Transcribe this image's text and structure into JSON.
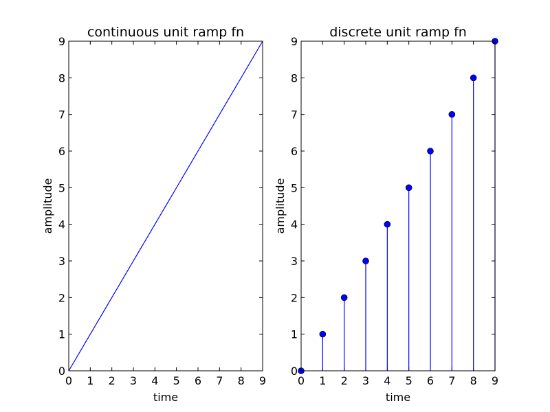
{
  "chart_data": [
    {
      "type": "line",
      "title": "continuous unit ramp fn",
      "xlabel": "time",
      "ylabel": "amplitude",
      "xlim": [
        0,
        9
      ],
      "ylim": [
        0,
        9
      ],
      "xticks": [
        "0",
        "1",
        "2",
        "3",
        "4",
        "5",
        "6",
        "7",
        "8",
        "9"
      ],
      "yticks": [
        "0",
        "1",
        "2",
        "3",
        "4",
        "5",
        "6",
        "7",
        "8",
        "9"
      ],
      "grid": false,
      "color": "#0000ff",
      "x": [
        0,
        9
      ],
      "y": [
        0,
        9
      ]
    },
    {
      "type": "stem",
      "title": "discrete unit ramp fn",
      "xlabel": "time",
      "ylabel": "amplitude",
      "xlim": [
        0,
        9
      ],
      "ylim": [
        0,
        9
      ],
      "xticks": [
        "0",
        "1",
        "2",
        "3",
        "4",
        "5",
        "6",
        "7",
        "8",
        "9"
      ],
      "yticks": [
        "0",
        "1",
        "2",
        "3",
        "4",
        "5",
        "6",
        "7",
        "8",
        "9"
      ],
      "grid": false,
      "color": "#0000ff",
      "x": [
        0,
        1,
        2,
        3,
        4,
        5,
        6,
        7,
        8,
        9
      ],
      "y": [
        0,
        1,
        2,
        3,
        4,
        5,
        6,
        7,
        8,
        9
      ]
    }
  ]
}
